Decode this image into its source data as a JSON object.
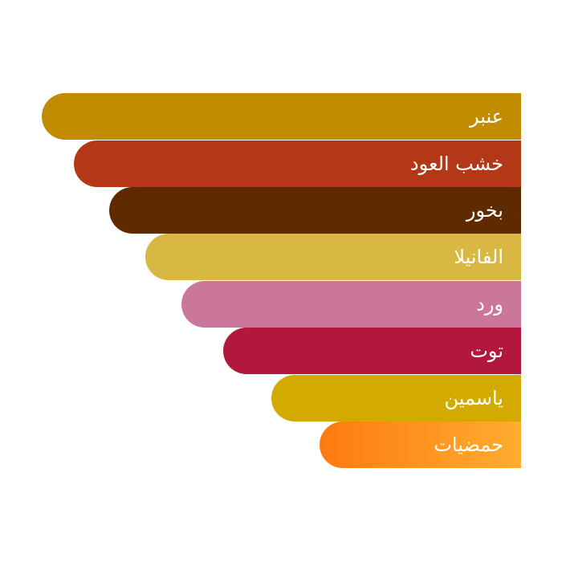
{
  "notes": [
    {
      "label": "عنبر",
      "color": "#c28c00"
    },
    {
      "label": "خشب العود",
      "color": "#b43718"
    },
    {
      "label": "بخور",
      "color": "#5f2a00"
    },
    {
      "label": "الفانيلا",
      "color": "#d8b843"
    },
    {
      "label": "ورد",
      "color": "#cb7799"
    },
    {
      "label": "توت",
      "color": "#b2173c"
    },
    {
      "label": "ياسمين",
      "color": "#d2aa00"
    },
    {
      "label": "حمضيات",
      "color": "#ff7a10",
      "color_end": "#ffad2e"
    }
  ]
}
